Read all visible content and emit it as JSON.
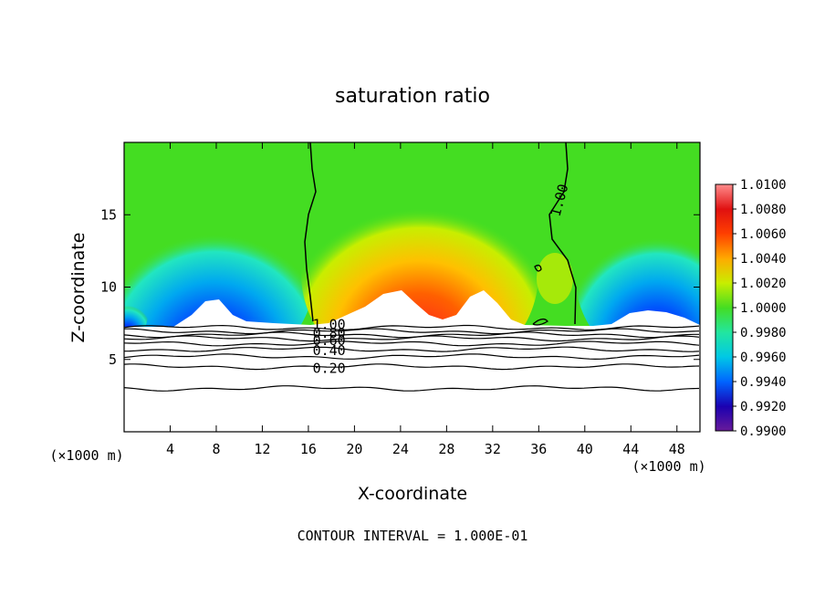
{
  "chart_data": {
    "type": "heatmap",
    "title": "saturation ratio",
    "xlabel": "X-coordinate",
    "ylabel": "Z-coordinate",
    "x_unit_label": "(×1000 m)",
    "xlim": [
      0,
      50
    ],
    "ylim": [
      0,
      20
    ],
    "x_ticks": [
      4,
      8,
      12,
      16,
      20,
      24,
      28,
      32,
      36,
      40,
      44,
      48
    ],
    "y_ticks": [
      5,
      10,
      15
    ],
    "footer": "CONTOUR INTERVAL = 1.000E-01",
    "colorbar": {
      "levels": [
        "0.9900",
        "0.9920",
        "0.9940",
        "0.9960",
        "0.9980",
        "1.0000",
        "1.0020",
        "1.0040",
        "1.0060",
        "1.0080",
        "1.0100"
      ],
      "colors": [
        "#6a1b9a",
        "#1a00b0",
        "#0064ff",
        "#00c8e6",
        "#22e6a0",
        "#44dd22",
        "#c8ee00",
        "#ffaa00",
        "#ff4000",
        "#e01010",
        "#ff8c8c"
      ]
    },
    "contour_labels": [
      {
        "text": "1.00",
        "x": 17.8,
        "z": 7.4
      },
      {
        "text": "0.80",
        "x": 17.8,
        "z": 6.8
      },
      {
        "text": "0.60",
        "x": 17.8,
        "z": 6.3
      },
      {
        "text": "0.40",
        "x": 17.8,
        "z": 5.6
      },
      {
        "text": "0.20",
        "x": 17.8,
        "z": 4.4
      },
      {
        "text": "1.00",
        "x": 37.8,
        "z": 16.0
      }
    ],
    "contours_below": [
      7.2,
      6.95,
      6.7,
      6.45,
      6.1,
      5.7,
      5.2,
      4.5,
      3.0
    ]
  }
}
